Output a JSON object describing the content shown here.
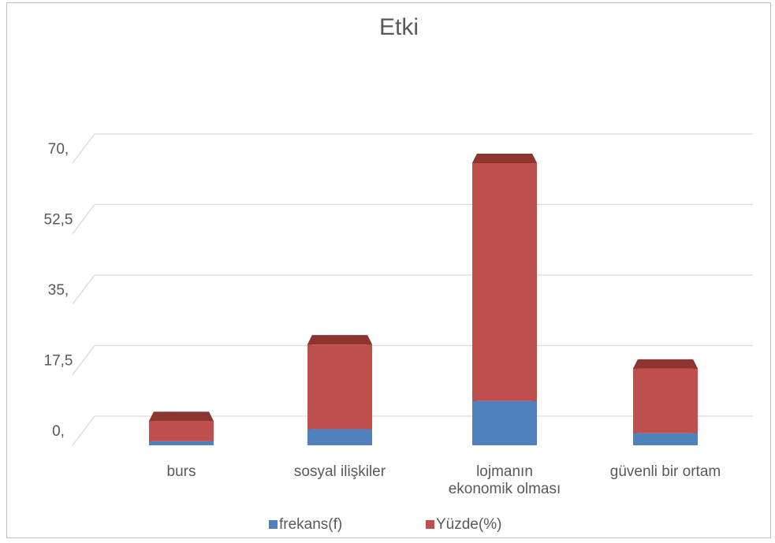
{
  "chart_data": {
    "type": "bar",
    "stacked": true,
    "style": "3d",
    "title": "Etki",
    "categories": [
      "burs",
      "sosyal ilişkiler",
      "lojmanın ekonomik olması",
      "güvenli bir ortam"
    ],
    "category_lines": [
      [
        "burs"
      ],
      [
        "sosyal ilişkiler"
      ],
      [
        "lojmanın",
        "ekonomik olması"
      ],
      [
        "güvenli bir ortam"
      ]
    ],
    "series": [
      {
        "name": "frekans(f)",
        "color": "#4f81bd",
        "values": [
          1,
          4,
          11,
          3
        ]
      },
      {
        "name": "Yüzde(%)",
        "color": "#c0504d",
        "top_color": "#8e3431",
        "values": [
          5,
          21,
          59,
          16
        ]
      }
    ],
    "ylim": [
      0,
      70
    ],
    "yticks": [
      0,
      17.5,
      35,
      52.5,
      70
    ],
    "ytick_labels": [
      "0,",
      "17,5",
      "35,",
      "52,5",
      "70,"
    ],
    "grid": true,
    "legend": "bottom"
  }
}
